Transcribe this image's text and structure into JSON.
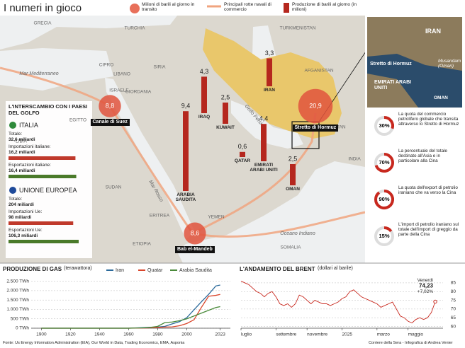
{
  "header": {
    "title": "I numeri in gioco",
    "legend": [
      "Milioni di barili al giorno in transito",
      "Principali rotte navali di commercio",
      "Produzione di barili al giorno (in milioni)"
    ]
  },
  "map": {
    "labels": [
      "GRECIA",
      "TURCHIA",
      "TURKMENISTAN",
      "CIPRO",
      "SIRIA",
      "LIBANO",
      "ISRAELE",
      "GIORDANIA",
      "EGITTO",
      "LIBIA",
      "SUDAN",
      "ERITREA",
      "YEMEN",
      "ETIOPIA",
      "SOMALIA",
      "AFGANISTAN",
      "PAKISTAN",
      "INDIA",
      "Mar Mediterraneo",
      "Mar Rosso",
      "Golfo Persico",
      "Oceano Indiano"
    ],
    "transit": [
      {
        "name": "Canale di Suez",
        "value": 8.8,
        "label": "8,8"
      },
      {
        "name": "Stretto di Hormuz",
        "value": 20.9,
        "label": "20,9"
      },
      {
        "name": "Bab el-Mandeb",
        "value": 8.6,
        "label": "8,6"
      }
    ],
    "production": [
      {
        "name": "IRAQ",
        "value": 4.3,
        "label": "4,3"
      },
      {
        "name": "KUWAIT",
        "value": 2.5,
        "label": "2,5"
      },
      {
        "name": "ARABIA SAUDITA",
        "value": 9.4,
        "label": "9,4"
      },
      {
        "name": "IRAN",
        "value": 3.3,
        "label": "3,3"
      },
      {
        "name": "QATAR",
        "value": 0.6,
        "label": "0,6"
      },
      {
        "name": "EMIRATI ARABI UNITI",
        "value": 4.4,
        "label": "4,4"
      },
      {
        "name": "OMAN",
        "value": 2.5,
        "label": "2,5"
      }
    ]
  },
  "trade": {
    "title": "L'INTERSCAMBIO CON I PAESI DEL GOLFO",
    "groups": [
      {
        "name": "ITALIA",
        "rows": [
          {
            "label": "Totale:",
            "value": 32.6,
            "value_label": "32,6 miliardi"
          },
          {
            "label": "Importazioni italiane:",
            "value": 16.2,
            "value_label": "16,2 miliardi"
          },
          {
            "label": "Esportazioni italiane:",
            "value": 16.4,
            "value_label": "16,4 miliardi"
          }
        ]
      },
      {
        "name": "UNIONE EUROPEA",
        "rows": [
          {
            "label": "Totale:",
            "value": 204,
            "value_label": "204 miliardi"
          },
          {
            "label": "Importazioni Ue:",
            "value": 98,
            "value_label": "98 miliardi"
          },
          {
            "label": "Esportazioni Ue:",
            "value": 106.3,
            "value_label": "106,3 miliardi"
          }
        ]
      }
    ]
  },
  "hormuz": {
    "inset_labels": [
      "IRAN",
      "Stretto di Hormuz",
      "Musandam (Oman)",
      "EMIRATI ARABI UNITI",
      "OMAN"
    ],
    "stats": [
      {
        "value": 30,
        "label": "30%",
        "text": "La quota del commercio petrolifero globale che transita attraverso lo Stretto di Hormuz"
      },
      {
        "value": 70,
        "label": "70%",
        "text": "La percentuale del totale destinato all'Asia e in particolare alla Cina"
      },
      {
        "value": 90,
        "label": "90%",
        "text": "La quota dell'export di petrolio iraniano che va verso la Cina"
      },
      {
        "value": 15,
        "label": "15%",
        "text": "L'import di petrolio iraniano sul totale dell'import di greggio da parte della Cina"
      }
    ]
  },
  "chart_data": [
    {
      "type": "line",
      "title": "PRODUZIONE DI GAS",
      "subtitle": "(terawattora)",
      "x": [
        1900,
        1920,
        1940,
        1950,
        1960,
        1970,
        1975,
        1980,
        1985,
        1990,
        1995,
        2000,
        2005,
        2010,
        2015,
        2020,
        2023
      ],
      "series": [
        {
          "name": "Iran",
          "color": "#2b6a9b",
          "values": [
            0,
            0,
            0,
            0,
            0,
            30,
            50,
            60,
            100,
            230,
            350,
            560,
            980,
            1400,
            1800,
            2250,
            2300
          ]
        },
        {
          "name": "Quatar",
          "color": "#d9452b",
          "values": [
            0,
            0,
            0,
            0,
            0,
            10,
            20,
            40,
            60,
            70,
            130,
            250,
            450,
            1100,
            1700,
            1750,
            1800
          ]
        },
        {
          "name": "Arabia Saudita",
          "color": "#4a8a3a",
          "values": [
            0,
            0,
            0,
            0,
            0,
            20,
            40,
            100,
            300,
            330,
            400,
            500,
            650,
            800,
            950,
            1100,
            1150
          ]
        }
      ],
      "xlim": [
        1893,
        2030
      ],
      "xticks": [
        1900,
        1920,
        1940,
        1960,
        1980,
        2000,
        2023
      ],
      "ylim": [
        0,
        2600
      ],
      "yticks": [
        {
          "value": 0,
          "label": "0 TWh"
        },
        {
          "value": 500,
          "label": "500 TWh"
        },
        {
          "value": 1000,
          "label": "1.000 TWh"
        },
        {
          "value": 1500,
          "label": "1.500 TWh"
        },
        {
          "value": 2000,
          "label": "2.000 TWh"
        },
        {
          "value": 2500,
          "label": "2.500 TWh"
        }
      ],
      "grid": true
    },
    {
      "type": "line",
      "title": "L'ANDAMENTO DEL BRENT",
      "subtitle": "(dollari al barile)",
      "x": [
        0,
        1,
        2,
        3,
        4,
        5,
        6,
        7,
        8,
        9,
        10,
        11,
        12,
        13,
        14,
        15,
        16,
        17,
        18,
        19,
        20,
        21,
        22,
        23,
        24,
        25,
        26,
        27,
        28,
        29,
        30,
        31,
        32,
        33,
        34,
        35,
        36,
        37,
        38,
        39,
        40,
        41,
        42,
        43,
        44,
        45,
        46,
        47,
        48,
        49,
        50
      ],
      "series": [
        {
          "name": "Brent",
          "color": "#c8281e",
          "values": [
            86,
            85,
            84,
            82,
            80,
            79,
            77,
            79,
            80,
            77,
            73,
            72,
            73,
            71,
            73,
            78,
            77,
            75,
            73,
            75,
            74,
            73,
            73,
            72,
            73,
            74,
            76,
            77,
            80,
            81,
            79,
            77,
            76,
            75,
            74,
            73,
            71,
            72,
            73,
            74,
            70,
            66,
            65,
            63,
            62,
            64,
            65,
            64,
            65,
            68,
            74.23
          ]
        }
      ],
      "xlim": [
        0,
        52
      ],
      "xticks": [
        {
          "value": 0,
          "label": "luglio"
        },
        {
          "value": 9,
          "label": "settembre"
        },
        {
          "value": 17,
          "label": "novembre"
        },
        {
          "value": 26,
          "label": "2025"
        },
        {
          "value": 35,
          "label": "marzo"
        },
        {
          "value": 43,
          "label": "maggio"
        }
      ],
      "ylim": [
        59,
        87
      ],
      "yticks": [
        60,
        65,
        70,
        75,
        80,
        85
      ],
      "grid": true,
      "annotations": [
        "Venerdì",
        "74,23",
        "+7,02%"
      ]
    }
  ],
  "footer": {
    "source": "Fonte: Us Energy Information Administration (EIA), Our World in Data, Trading Economics, EMA, Asponia",
    "credit": "Corriere della Sera - Infografica di Andrea Venier"
  }
}
